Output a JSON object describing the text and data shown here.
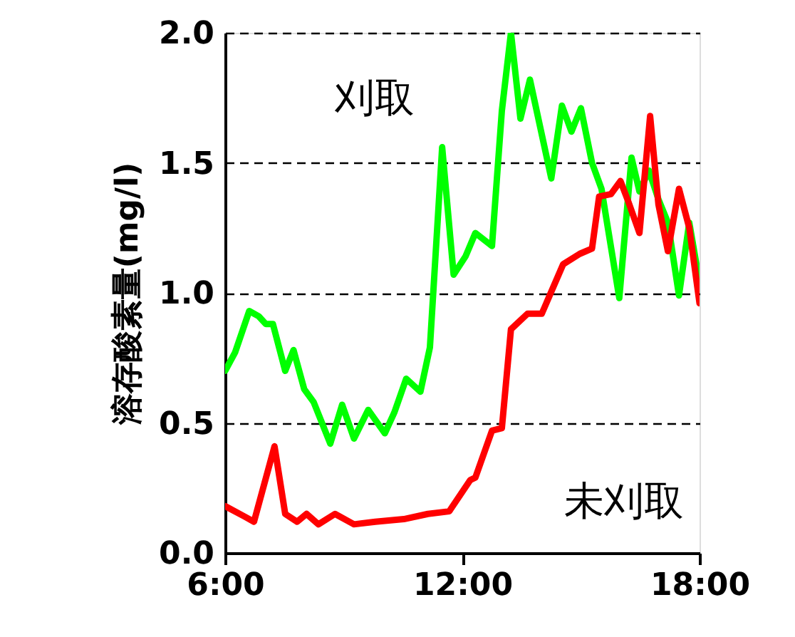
{
  "chart_data": {
    "type": "line",
    "ylabel": "溶存酸素量(mg/l)",
    "xlim": [
      6,
      18
    ],
    "xticks": [
      {
        "value": 6,
        "label": "6:00"
      },
      {
        "value": 12,
        "label": "12:00"
      },
      {
        "value": 18,
        "label": "18:00"
      }
    ],
    "ylim": [
      0,
      2
    ],
    "yticks": [
      {
        "value": 0,
        "label": "0.0"
      },
      0.5,
      {
        "value": 1,
        "label": "1.0"
      },
      1.5,
      {
        "value": 2,
        "label": "2.0"
      }
    ],
    "grid": "y",
    "line_style": "solid",
    "marker": "none",
    "series": [
      {
        "name": "刈取",
        "color": "#00ff00",
        "x": [
          6.0,
          6.25,
          6.61,
          6.85,
          7.03,
          7.21,
          7.52,
          7.73,
          8.0,
          8.24,
          8.66,
          8.96,
          9.26,
          9.62,
          10.04,
          10.28,
          10.58,
          10.94,
          11.18,
          11.49,
          11.78,
          12.08,
          12.33,
          12.75,
          13.0,
          13.23,
          13.47,
          13.71,
          14.25,
          14.52,
          14.76,
          15.0,
          15.28,
          15.52,
          15.97,
          16.28,
          16.48,
          16.72,
          16.96,
          17.2,
          17.48,
          17.74,
          18.0
        ],
        "values": [
          0.7,
          0.77,
          0.93,
          0.91,
          0.88,
          0.88,
          0.7,
          0.78,
          0.63,
          0.58,
          0.42,
          0.57,
          0.44,
          0.55,
          0.46,
          0.54,
          0.67,
          0.62,
          0.79,
          1.56,
          1.07,
          1.14,
          1.23,
          1.18,
          1.7,
          2.0,
          1.67,
          1.82,
          1.44,
          1.72,
          1.62,
          1.71,
          1.5,
          1.4,
          0.98,
          1.52,
          1.39,
          1.47,
          1.36,
          1.27,
          0.99,
          1.27,
          1.04
        ]
      },
      {
        "name": "未刈取",
        "color": "#ff0000",
        "x": [
          6.0,
          6.49,
          6.73,
          7.25,
          7.52,
          7.82,
          8.06,
          8.36,
          8.78,
          9.26,
          9.8,
          10.52,
          11.13,
          11.67,
          12.2,
          12.33,
          12.75,
          13.0,
          13.23,
          13.65,
          14.01,
          14.55,
          14.97,
          15.28,
          15.46,
          15.76,
          16.0,
          16.2,
          16.48,
          16.75,
          16.96,
          17.2,
          17.48,
          17.74,
          18.0
        ],
        "values": [
          0.18,
          0.14,
          0.12,
          0.41,
          0.15,
          0.12,
          0.15,
          0.11,
          0.15,
          0.11,
          0.12,
          0.13,
          0.15,
          0.16,
          0.28,
          0.29,
          0.47,
          0.48,
          0.86,
          0.92,
          0.92,
          1.11,
          1.15,
          1.17,
          1.37,
          1.38,
          1.43,
          1.35,
          1.23,
          1.68,
          1.34,
          1.16,
          1.4,
          1.25,
          0.96
        ]
      }
    ]
  }
}
